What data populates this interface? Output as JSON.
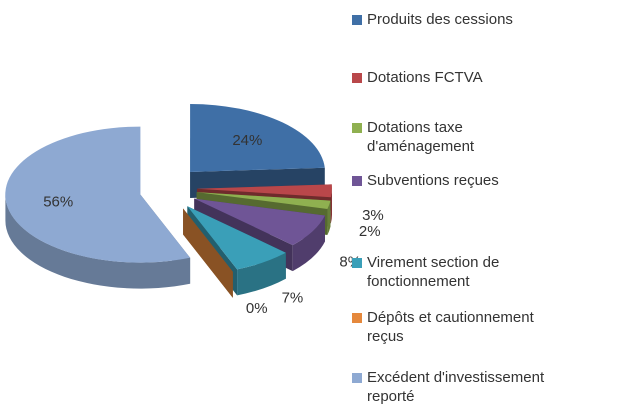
{
  "chart_data": {
    "type": "pie",
    "categories": [
      [
        "Produits des cessions"
      ],
      [
        "Dotations FCTVA"
      ],
      [
        "Dotations taxe",
        "d'aménagement"
      ],
      [
        "Subventions reçues"
      ],
      [
        "Virement section de",
        "fonctionnement"
      ],
      [
        "Dépôts et cautionnement",
        "reçus"
      ],
      [
        "Excédent d'investissement",
        "reporté"
      ]
    ],
    "values": [
      24,
      3,
      2,
      8,
      7,
      0,
      56
    ],
    "value_labels": [
      "24%",
      "3%",
      "2%",
      "8%",
      "7%",
      "0%",
      "56%"
    ],
    "colors": [
      "#3f6fa6",
      "#b9474a",
      "#8fb050",
      "#6f5596",
      "#3a9fb8",
      "#e5883c",
      "#8ea9d2"
    ],
    "legend": "right"
  }
}
